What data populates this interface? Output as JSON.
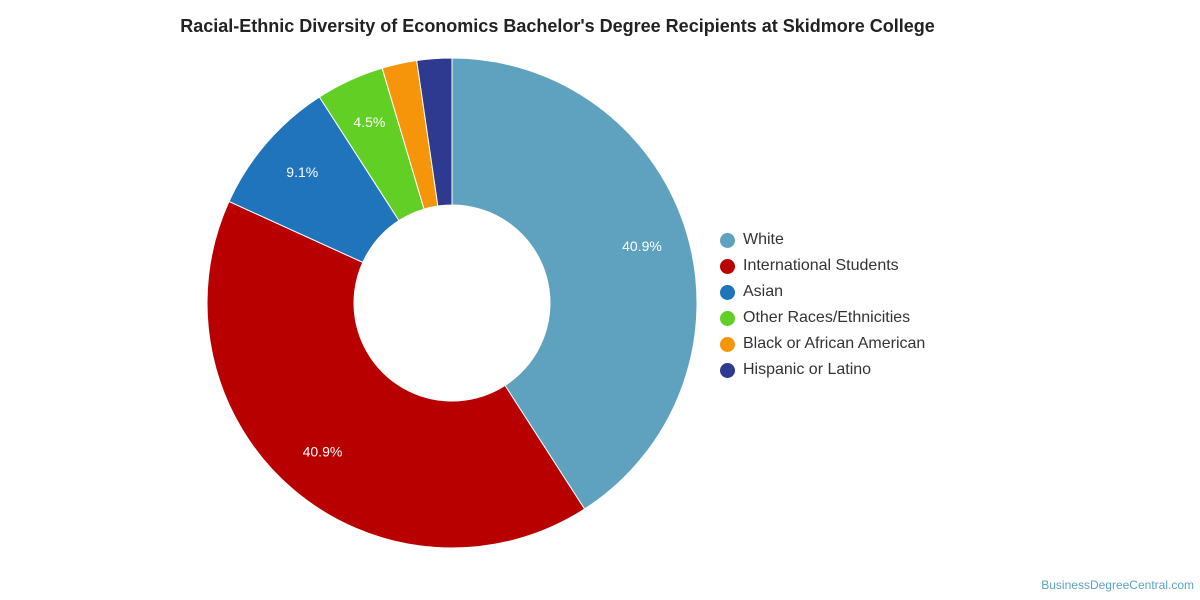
{
  "chart_data": {
    "type": "pie",
    "title": "Racial-Ethnic Diversity of Economics Bachelor's Degree Recipients at Skidmore College",
    "categories": [
      "White",
      "International Students",
      "Asian",
      "Other Races/Ethnicities",
      "Black or African American",
      "Hispanic or Latino"
    ],
    "values": [
      40.9,
      40.9,
      9.1,
      4.5,
      2.3,
      2.3
    ],
    "data_labels": [
      "40.9%",
      "40.9%",
      "9.1%",
      "4.5%",
      "",
      ""
    ],
    "colors": [
      "#5ea2bf",
      "#b90000",
      "#1f74bb",
      "#61cf24",
      "#f7950a",
      "#2e3990"
    ],
    "donut": true,
    "legend_position": "right"
  },
  "source_credit": "BusinessDegreeCentral.com"
}
